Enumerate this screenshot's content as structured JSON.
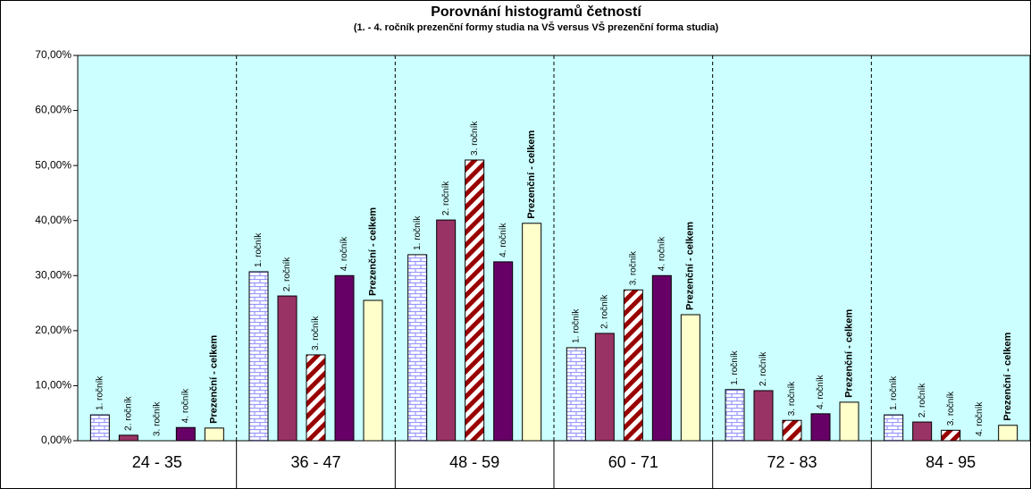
{
  "chart_data": {
    "type": "bar",
    "title": "Porovnání histogramů četností",
    "subtitle": "(1. - 4. ročník prezenční formy studia na VŠ versus VŠ prezenční forma studia)",
    "categories": [
      "24 - 35",
      "36 - 47",
      "48 - 59",
      "60 - 71",
      "72 - 83",
      "84 - 95"
    ],
    "series": [
      {
        "name": "1. ročník",
        "color": "#ccccff",
        "pattern": "brick",
        "values": [
          4.7,
          30.7,
          33.8,
          16.9,
          9.3,
          4.7
        ]
      },
      {
        "name": "2. ročník",
        "color": "#993366",
        "values": [
          1.0,
          26.3,
          40.1,
          19.5,
          9.1,
          3.4
        ]
      },
      {
        "name": "3. ročník",
        "color": "#990000",
        "pattern": "diagonal",
        "values": [
          0,
          15.6,
          51.0,
          27.4,
          3.7,
          1.9
        ]
      },
      {
        "name": "4. ročník",
        "color": "#660066",
        "values": [
          2.4,
          30.0,
          32.5,
          30.0,
          4.9,
          0
        ]
      },
      {
        "name": "Prezenční - celkem",
        "color": "#ffffcc",
        "values": [
          2.3,
          25.5,
          39.5,
          22.9,
          7.0,
          2.8
        ]
      }
    ],
    "ylim": [
      0,
      70
    ],
    "yticks": [
      {
        "value": 0,
        "label": "0,00%"
      },
      {
        "value": 10,
        "label": "10,00%"
      },
      {
        "value": 20,
        "label": "20,00%"
      },
      {
        "value": 30,
        "label": "30,00%"
      },
      {
        "value": 40,
        "label": "40,00%"
      },
      {
        "value": 50,
        "label": "50,00%"
      },
      {
        "value": 60,
        "label": "60,00%"
      },
      {
        "value": 70,
        "label": "70,00%"
      }
    ],
    "background": "#ccffff"
  }
}
